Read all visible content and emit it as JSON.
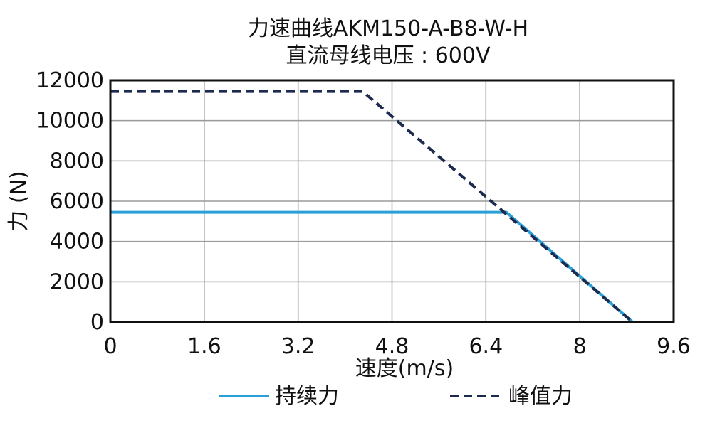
{
  "chart_data": {
    "type": "line",
    "title": "力速曲线AKM150-A-B8-W-H",
    "subtitle": "直流母线电压 : 600V",
    "xlabel": "速度(m/s)",
    "ylabel": "力 (N)",
    "xlim": [
      0,
      9.6
    ],
    "ylim": [
      0,
      12000
    ],
    "xticks": [
      0,
      1.6,
      3.2,
      4.8,
      6.4,
      8,
      9.6
    ],
    "xtick_labels": [
      "0",
      "1.6",
      "3.2",
      "4.8",
      "6.4",
      "8",
      "9.6"
    ],
    "yticks": [
      0,
      2000,
      4000,
      6000,
      8000,
      10000,
      12000
    ],
    "ytick_labels": [
      "0",
      "2000",
      "4000",
      "6000",
      "8000",
      "10000",
      "12000"
    ],
    "grid": true,
    "legend_position": "bottom",
    "series": [
      {
        "name": "持续力",
        "style": "solid",
        "color": "#2aa0d8",
        "x": [
          0,
          6.75,
          8.9
        ],
        "y": [
          5450,
          5450,
          0
        ]
      },
      {
        "name": "峰值力",
        "style": "dashed",
        "color": "#1c2a4e",
        "x": [
          0,
          4.3,
          8.9
        ],
        "y": [
          11450,
          11450,
          0
        ]
      }
    ]
  }
}
